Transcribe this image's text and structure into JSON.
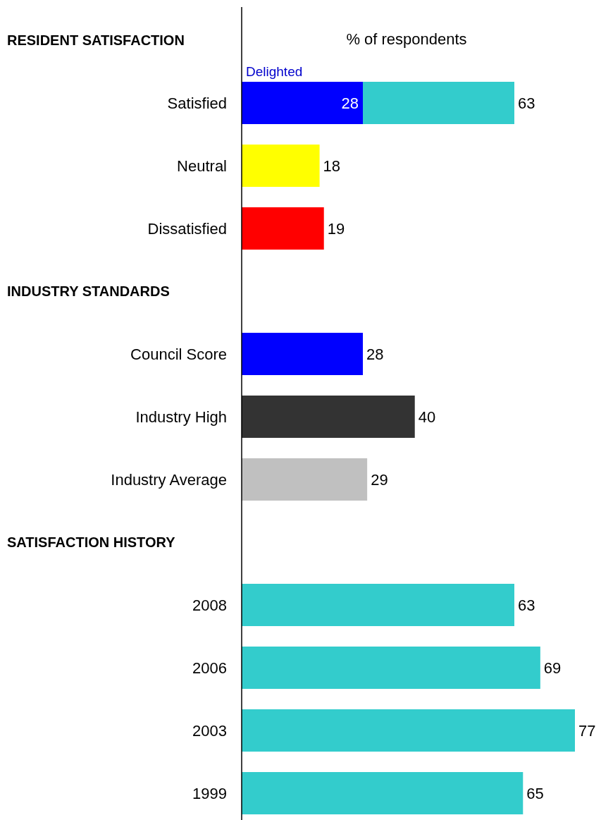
{
  "chart_data": {
    "type": "bar",
    "orientation": "horizontal",
    "stacked": true,
    "xlabel": "% of respondents",
    "categories": [
      null,
      "Satisfied",
      "Neutral",
      "Dissatisfied",
      null,
      "Council Score",
      "Industry High",
      "Industry Average",
      null,
      "2008",
      "2006",
      "2003",
      "1999"
    ],
    "annotations": [
      "RESIDENT SATISFACTION",
      "INDUSTRY STANDARDS",
      "SATISFACTION HISTORY"
    ],
    "series": [
      {
        "name": "Delighted",
        "color": "#0000ff",
        "values": [
          null,
          28,
          null,
          null,
          null,
          null,
          null,
          null,
          null,
          null,
          null,
          null,
          null
        ],
        "value_labels": [
          null,
          "28",
          null,
          null,
          null,
          null,
          null,
          null,
          null,
          null,
          null,
          null,
          null
        ]
      },
      {
        "colors": [
          null,
          "#33cccc",
          "#ffff00",
          "#ff0000",
          null,
          "#0000ff",
          "#333333",
          "#c0c0c0",
          null,
          "#33cccc",
          "#33cccc",
          "#33cccc",
          "#33cccc"
        ],
        "values": [
          null,
          35,
          18,
          19,
          null,
          28,
          40,
          29,
          null,
          63,
          69,
          77,
          65
        ],
        "value_labels": [
          null,
          null,
          "18",
          "19",
          null,
          "28",
          "40",
          "29",
          null,
          "63",
          "69",
          "77",
          "65"
        ]
      }
    ],
    "totals": [
      null,
      "63",
      null,
      null,
      null,
      null,
      null,
      null,
      null,
      null,
      null,
      null,
      null
    ]
  }
}
